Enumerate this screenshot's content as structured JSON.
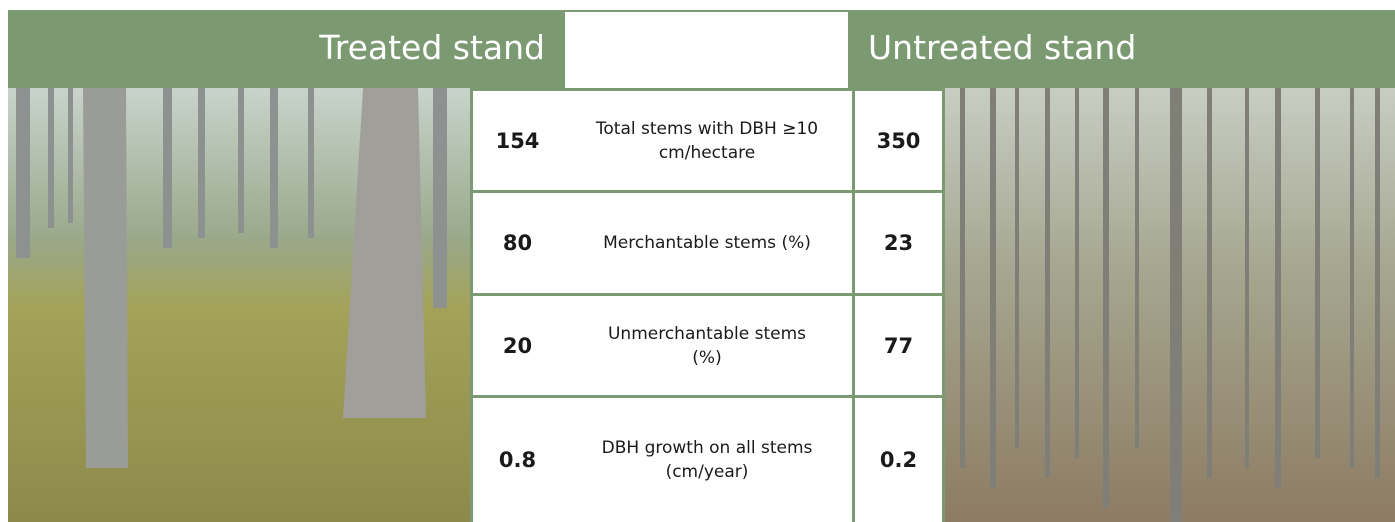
{
  "header": {
    "left_title": "Treated stand",
    "right_title": "Untreated stand"
  },
  "table": {
    "rows": [
      [
        154,
        "Total stems with DBH ≥10 cm/hectare",
        350
      ],
      [
        80,
        "Merchantable stems (%)",
        23
      ],
      [
        20,
        "Unmerchantable stems (%)",
        77
      ],
      [
        0.8,
        "DBH growth on all stems (cm/year)",
        0.2
      ]
    ]
  }
}
